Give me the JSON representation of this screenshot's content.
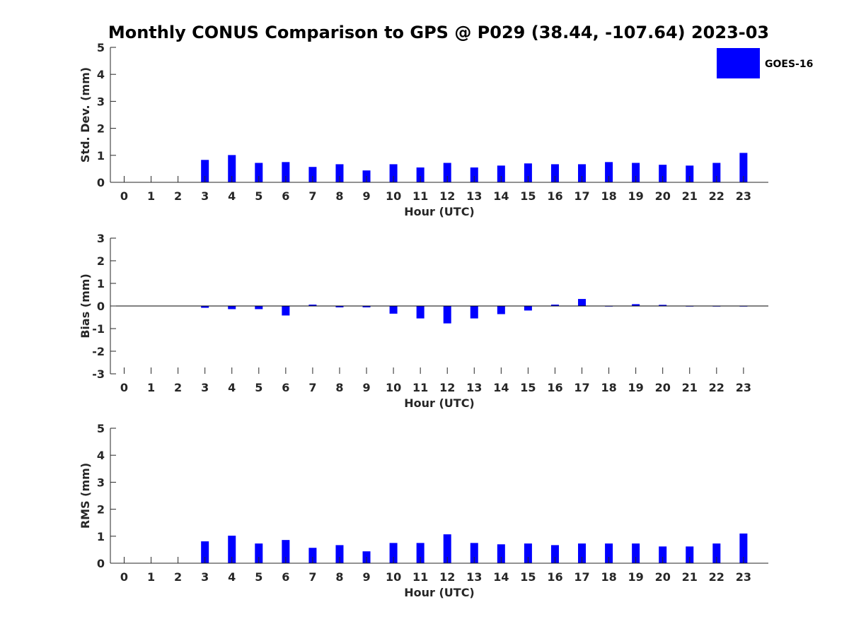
{
  "title": "Monthly CONUS Comparison to GPS @ P029 (38.44, -107.64) 2023-03",
  "legend": {
    "label": "GOES-16",
    "color": "#0000ff",
    "position": "top-right"
  },
  "chart_data": [
    {
      "type": "bar",
      "xlabel": "Hour (UTC)",
      "ylabel": "Std. Dev. (mm)",
      "ylim": [
        0,
        5
      ],
      "yticks": [
        "0",
        "1",
        "2",
        "3",
        "4",
        "5"
      ],
      "categories": [
        "0",
        "1",
        "2",
        "3",
        "4",
        "5",
        "6",
        "7",
        "8",
        "9",
        "10",
        "11",
        "12",
        "13",
        "14",
        "15",
        "16",
        "17",
        "18",
        "19",
        "20",
        "21",
        "22",
        "23"
      ],
      "series": [
        {
          "name": "GOES-16",
          "values": [
            null,
            null,
            null,
            0.83,
            1.01,
            0.72,
            0.75,
            0.57,
            0.67,
            0.44,
            0.67,
            0.55,
            0.72,
            0.55,
            0.62,
            0.7,
            0.67,
            0.67,
            0.75,
            0.72,
            0.65,
            0.62,
            0.72,
            1.09
          ]
        }
      ]
    },
    {
      "type": "bar",
      "xlabel": "Hour (UTC)",
      "ylabel": "Bias (mm)",
      "ylim": [
        -3,
        3
      ],
      "yticks": [
        "-3",
        "-2",
        "-1",
        "0",
        "1",
        "2",
        "3"
      ],
      "categories": [
        "0",
        "1",
        "2",
        "3",
        "4",
        "5",
        "6",
        "7",
        "8",
        "9",
        "10",
        "11",
        "12",
        "13",
        "14",
        "15",
        "16",
        "17",
        "18",
        "19",
        "20",
        "21",
        "22",
        "23"
      ],
      "series": [
        {
          "name": "GOES-16",
          "values": [
            null,
            null,
            null,
            -0.08,
            -0.14,
            -0.14,
            -0.42,
            0.06,
            -0.06,
            -0.06,
            -0.34,
            -0.55,
            -0.77,
            -0.55,
            -0.36,
            -0.2,
            0.06,
            0.31,
            -0.02,
            0.08,
            0.05,
            -0.02,
            -0.02,
            -0.02
          ]
        }
      ]
    },
    {
      "type": "bar",
      "xlabel": "Hour (UTC)",
      "ylabel": "RMS (mm)",
      "ylim": [
        0,
        5
      ],
      "yticks": [
        "0",
        "1",
        "2",
        "3",
        "4",
        "5"
      ],
      "categories": [
        "0",
        "1",
        "2",
        "3",
        "4",
        "5",
        "6",
        "7",
        "8",
        "9",
        "10",
        "11",
        "12",
        "13",
        "14",
        "15",
        "16",
        "17",
        "18",
        "19",
        "20",
        "21",
        "22",
        "23"
      ],
      "series": [
        {
          "name": "GOES-16",
          "values": [
            null,
            null,
            null,
            0.81,
            1.02,
            0.73,
            0.86,
            0.57,
            0.67,
            0.44,
            0.75,
            0.75,
            1.07,
            0.75,
            0.7,
            0.73,
            0.67,
            0.73,
            0.73,
            0.73,
            0.62,
            0.62,
            0.73,
            1.1
          ]
        }
      ]
    }
  ]
}
